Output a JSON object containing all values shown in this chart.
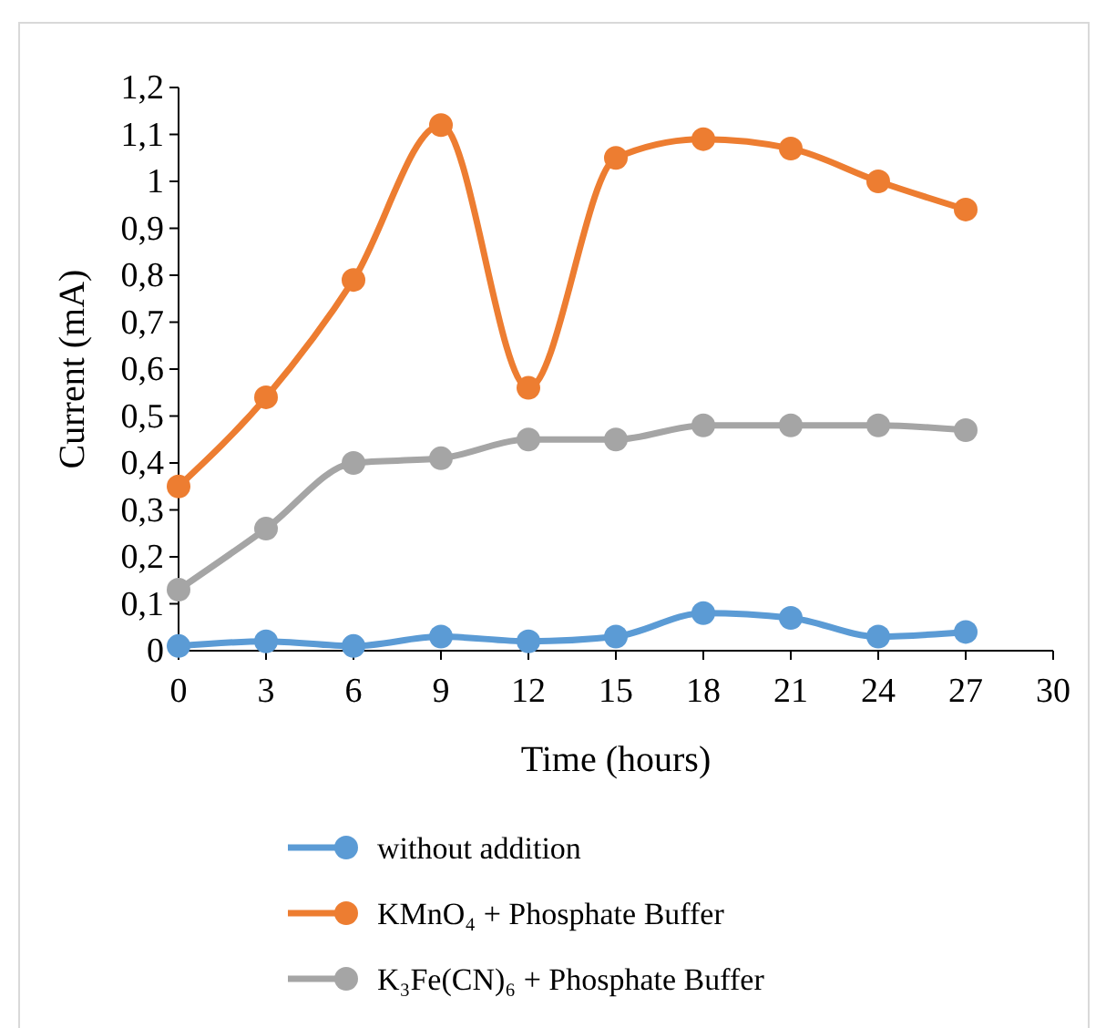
{
  "chart_data": {
    "type": "line",
    "xlabel": "Time (hours)",
    "ylabel": "Current (mA)",
    "x": [
      0,
      3,
      6,
      9,
      12,
      15,
      18,
      21,
      24,
      27
    ],
    "series": [
      {
        "name": "without addition",
        "color": "#5b9bd5",
        "values": [
          0.01,
          0.02,
          0.01,
          0.03,
          0.02,
          0.03,
          0.08,
          0.07,
          0.03,
          0.04
        ]
      },
      {
        "name": "KMnO₄ + Phosphate Buffer",
        "color": "#ed7d31",
        "values": [
          0.35,
          0.54,
          0.79,
          1.12,
          0.56,
          1.05,
          1.09,
          1.07,
          1.0,
          0.94
        ]
      },
      {
        "name": "K₃Fe(CN)₆ + Phosphate Buffer",
        "color": "#a5a5a5",
        "values": [
          0.13,
          0.26,
          0.4,
          0.41,
          0.45,
          0.45,
          0.48,
          0.48,
          0.48,
          0.47
        ]
      }
    ],
    "xlim": [
      0,
      30
    ],
    "xticks": [
      0,
      3,
      6,
      9,
      12,
      15,
      18,
      21,
      24,
      27,
      30
    ],
    "ylim": [
      0,
      1.2
    ],
    "yticks": [
      0,
      {
        "value": 0.1,
        "label": "0,1"
      },
      {
        "value": 0.2,
        "label": "0,2"
      },
      {
        "value": 0.3,
        "label": "0,3"
      },
      {
        "value": 0.4,
        "label": "0,4"
      },
      {
        "value": 0.5,
        "label": "0,5"
      },
      {
        "value": 0.6,
        "label": "0,6"
      },
      {
        "value": 0.7,
        "label": "0,7"
      },
      {
        "value": 0.8,
        "label": "0,8"
      },
      {
        "value": 0.9,
        "label": "0,9"
      },
      1,
      {
        "value": 1.1,
        "label": "1,1"
      },
      {
        "value": 1.2,
        "label": "1,2"
      }
    ],
    "grid": false,
    "legend": "bottom",
    "marker": "circle",
    "line_style": "solid"
  }
}
